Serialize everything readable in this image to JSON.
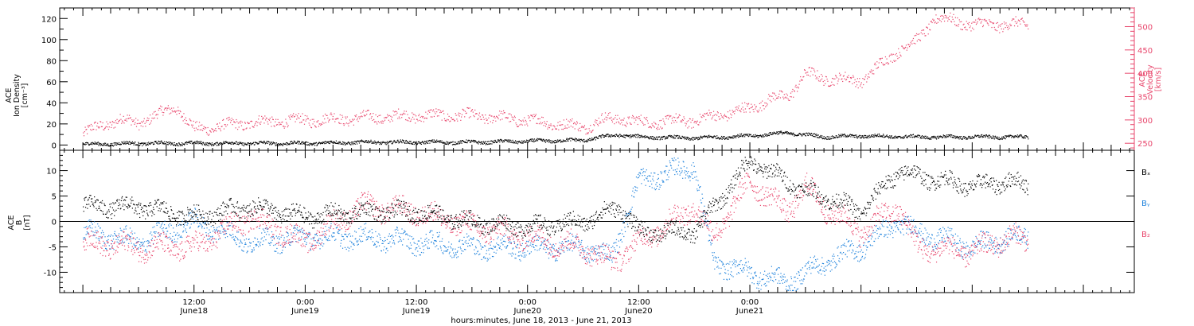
{
  "chart_data": [
    {
      "type": "scatter",
      "panel": "top",
      "ylabel_left": [
        "ACE",
        "Ion Density",
        "[cm⁻³]"
      ],
      "ylabel_right": [
        "ACE",
        "Velocity",
        "[km/s]"
      ],
      "ylim_left": [
        -5,
        130
      ],
      "yticks_left": [
        0,
        20,
        40,
        60,
        80,
        100,
        120
      ],
      "ylim_right": [
        235,
        540
      ],
      "yticks_right": [
        250,
        300,
        350,
        400,
        450,
        500
      ],
      "colors": {
        "density": "#000000",
        "velocity": "#e8456b"
      },
      "series": [
        {
          "axis": "left",
          "x": [
            0,
            6,
            12,
            18,
            24,
            30,
            36,
            42,
            48,
            54,
            56,
            58,
            60,
            66,
            72,
            76,
            78,
            80,
            84,
            90,
            96,
            102
          ],
          "values": [
            1,
            2,
            2,
            2,
            2,
            3,
            3,
            3,
            4,
            5,
            8,
            10,
            8,
            7,
            9,
            12,
            10,
            8,
            9,
            8,
            8,
            8
          ]
        },
        {
          "axis": "right",
          "x": [
            0,
            2,
            4,
            6,
            8,
            10,
            12,
            18,
            24,
            30,
            36,
            42,
            48,
            54,
            56,
            58,
            60,
            66,
            72,
            74,
            76,
            78,
            80,
            84,
            88,
            90,
            92,
            96,
            100,
            102
          ],
          "values": [
            270,
            290,
            300,
            295,
            310,
            330,
            280,
            295,
            300,
            305,
            310,
            310,
            300,
            285,
            300,
            305,
            295,
            300,
            325,
            345,
            350,
            400,
            390,
            385,
            450,
            470,
            520,
            505,
            505,
            505
          ]
        }
      ]
    },
    {
      "type": "scatter",
      "panel": "bottom",
      "ylabel": [
        "ACE",
        "B",
        "[nT]"
      ],
      "ylim": [
        -14,
        14
      ],
      "yticks": [
        -10,
        -5,
        0,
        5,
        10
      ],
      "zero_line": true,
      "legend": [
        "Bₓ",
        "Bᵧ",
        "B₂"
      ],
      "legend_placement": "right",
      "colors": {
        "Bx": "#000000",
        "By": "#1e82dc",
        "Bz": "#e8456b"
      },
      "series": [
        {
          "name": "Bₓ",
          "x": [
            0,
            6,
            12,
            18,
            24,
            30,
            36,
            42,
            48,
            54,
            58,
            60,
            66,
            72,
            76,
            78,
            80,
            84,
            88,
            90,
            96,
            100,
            102
          ],
          "values": [
            3,
            3,
            1,
            3,
            1,
            2,
            2,
            0,
            -1,
            0,
            3,
            -2,
            -2,
            12,
            8,
            6,
            5,
            2,
            10,
            9,
            7,
            8,
            7
          ]
        },
        {
          "name": "Bᵧ",
          "x": [
            0,
            6,
            12,
            18,
            24,
            30,
            36,
            42,
            48,
            54,
            57,
            60,
            64,
            66,
            68,
            72,
            76,
            78,
            80,
            84,
            88,
            90,
            96,
            100,
            102
          ],
          "values": [
            -2,
            -4,
            0,
            -4,
            -3,
            -3,
            -4,
            -5,
            -5,
            -5,
            -7,
            8,
            10,
            11,
            -8,
            -10,
            -12,
            -10,
            -8,
            -5,
            0,
            -2,
            -5,
            -3,
            -3
          ]
        },
        {
          "name": "B₂",
          "x": [
            0,
            6,
            12,
            18,
            24,
            30,
            36,
            42,
            48,
            54,
            57,
            60,
            66,
            68,
            72,
            76,
            78,
            80,
            84,
            88,
            90,
            96,
            100,
            102
          ],
          "values": [
            -4,
            -5,
            -5,
            1,
            -4,
            3,
            2,
            -1,
            -3,
            -5,
            -8,
            -4,
            3,
            -3,
            8,
            2,
            7,
            3,
            -2,
            3,
            -5,
            -6,
            -3,
            -4
          ]
        }
      ]
    }
  ],
  "x_axis": {
    "xlim": [
      -2.5,
      113.5
    ],
    "major_ticks": [
      {
        "x": 12,
        "time": "12:00",
        "date": "June18"
      },
      {
        "x": 24,
        "time": "0:00",
        "date": "June19"
      },
      {
        "x": 36,
        "time": "12:00",
        "date": "June19"
      },
      {
        "x": 48,
        "time": "0:00",
        "date": "June20"
      },
      {
        "x": 60,
        "time": "12:00",
        "date": "June20"
      },
      {
        "x": 72,
        "time": "0:00",
        "date": "June21"
      }
    ],
    "xlabel": "hours:minutes, June 18, 2013 - June 21, 2013"
  }
}
